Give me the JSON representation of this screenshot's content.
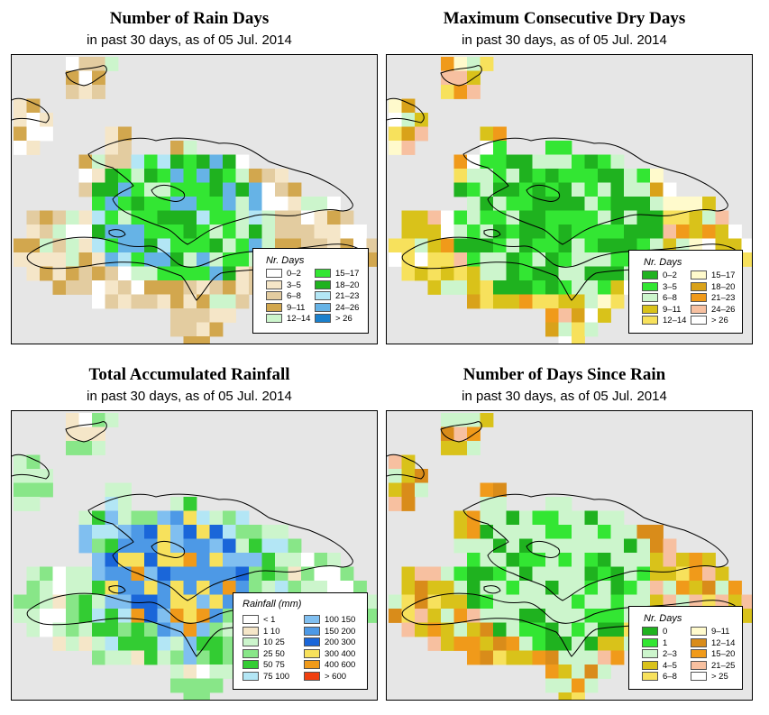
{
  "panels": [
    {
      "id": "rain-days",
      "title": "Number of Rain Days",
      "subtitle": "in past 30 days, as of  05 Jul. 2014",
      "legend": {
        "title": "Nr. Days",
        "items": [
          {
            "label": "0–2",
            "color": "#ffffff"
          },
          {
            "label": "3–5",
            "color": "#f5e6c8"
          },
          {
            "label": "6–8",
            "color": "#e3cca0"
          },
          {
            "label": "9–11",
            "color": "#d2a74e"
          },
          {
            "label": "12–14",
            "color": "#ccf5cc"
          },
          {
            "label": "15–17",
            "color": "#33e633"
          },
          {
            "label": "18–20",
            "color": "#1fb21f"
          },
          {
            "label": "21–23",
            "color": "#b3e6f5"
          },
          {
            "label": "24–26",
            "color": "#66b3e6"
          },
          {
            "label": "> 26",
            "color": "#1a80cc"
          }
        ]
      }
    },
    {
      "id": "dry-days",
      "title": "Maximum Consecutive Dry Days",
      "subtitle": "in past 30 days, as of  05 Jul. 2014",
      "legend": {
        "title": "Nr. Days",
        "items": [
          {
            "label": "0–2",
            "color": "#1fb21f"
          },
          {
            "label": "3–5",
            "color": "#33e633"
          },
          {
            "label": "6–8",
            "color": "#ccf5cc"
          },
          {
            "label": "9–11",
            "color": "#d9c21a"
          },
          {
            "label": "12–14",
            "color": "#f7e15c"
          },
          {
            "label": "15–17",
            "color": "#fffacc"
          },
          {
            "label": "18–20",
            "color": "#d9a21a"
          },
          {
            "label": "21–23",
            "color": "#f09a1a"
          },
          {
            "label": "24–26",
            "color": "#f7c0a0"
          },
          {
            "label": "> 26",
            "color": "#ffffff"
          }
        ]
      }
    },
    {
      "id": "rainfall",
      "title": "Total Accumulated Rainfall",
      "subtitle": "in past 30 days, as of  05 Jul. 2014",
      "legend": {
        "title": "Rainfall (mm)",
        "items": [
          {
            "label": "< 1",
            "color": "#ffffff"
          },
          {
            "label": "1   10",
            "color": "#f5e6c8"
          },
          {
            "label": "10   25",
            "color": "#ccf5cc"
          },
          {
            "label": "25   50",
            "color": "#88e688"
          },
          {
            "label": "50   75",
            "color": "#33cc33"
          },
          {
            "label": "75  100",
            "color": "#b3e6f5"
          },
          {
            "label": "100  150",
            "color": "#80bff0"
          },
          {
            "label": "150  200",
            "color": "#4d99e6"
          },
          {
            "label": "200  300",
            "color": "#1a66d9"
          },
          {
            "label": "300  400",
            "color": "#f7e15c"
          },
          {
            "label": "400  600",
            "color": "#f09a1a"
          },
          {
            "label": "> 600",
            "color": "#f04010"
          }
        ]
      }
    },
    {
      "id": "since-rain",
      "title": "Number of Days Since Rain",
      "subtitle": "in past 30 days, as of  05 Jul. 2014",
      "legend": {
        "title": "Nr. Days",
        "items": [
          {
            "label": "0",
            "color": "#1fb21f"
          },
          {
            "label": "1",
            "color": "#33e633"
          },
          {
            "label": "2–3",
            "color": "#ccf5cc"
          },
          {
            "label": "4–5",
            "color": "#d9c21a"
          },
          {
            "label": "6–8",
            "color": "#f7e15c"
          },
          {
            "label": "9–11",
            "color": "#fffacc"
          },
          {
            "label": "12–14",
            "color": "#d98c1a"
          },
          {
            "label": "15–20",
            "color": "#f09a1a"
          },
          {
            "label": "21–25",
            "color": "#f7c0a0"
          },
          {
            "label": "> 25",
            "color": "#ffffff"
          }
        ]
      }
    }
  ]
}
